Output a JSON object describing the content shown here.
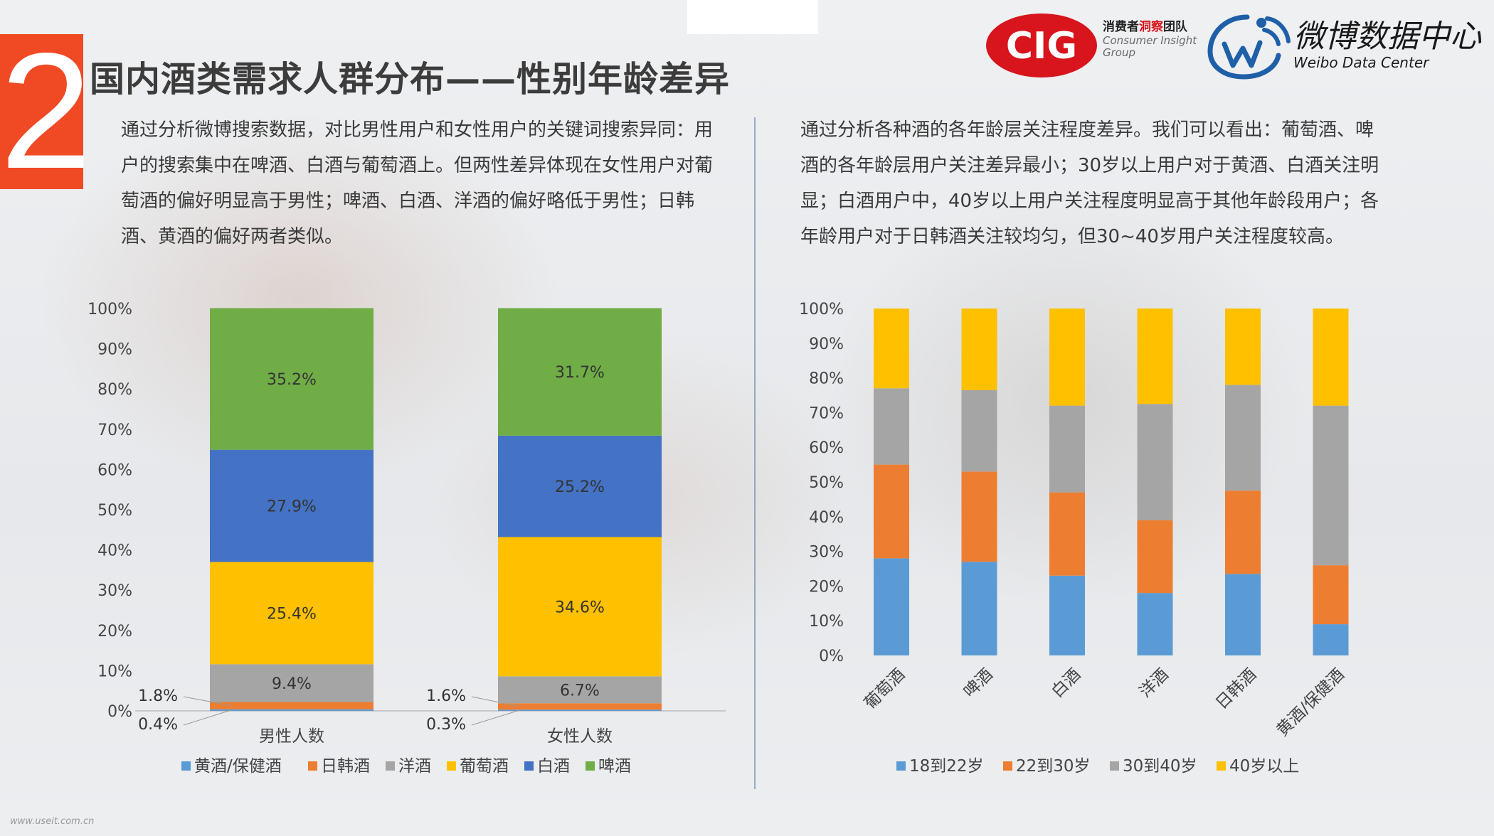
{
  "header": {
    "section_number": "2",
    "title": "国内酒类需求人群分布——性别年龄差异"
  },
  "logos": {
    "cig_mark": "CIG",
    "cig_cn_pre": "消费者",
    "cig_cn_red": "洞察",
    "cig_cn_post": "团队",
    "cig_en_line1": "Consumer Insight",
    "cig_en_line2": "Group",
    "weibo_cn": "微博数据中心",
    "weibo_en": "Weibo Data Center"
  },
  "left_text": "通过分析微博搜索数据，对比男性用户和女性用户的关键词搜索异同：用户的搜索集中在啤酒、白酒与葡萄酒上。但两性差异体现在女性用户对葡萄酒的偏好明显高于男性；啤酒、白酒、洋酒的偏好略低于男性；日韩酒、黄酒的偏好两者类似。",
  "right_text": "通过分析各种酒的各年龄层关注程度差异。我们可以看出：葡萄酒、啤酒的各年龄层用户关注差异最小；30岁以上用户对于黄酒、白酒关注明显；白酒用户中，40岁以上用户关注程度明显高于其他年龄段用户；各年龄用户对于日韩酒关注较均匀，但30~40岁用户关注程度较高。",
  "watermark": "www.useit.com.cn",
  "colors": {
    "blue_light": "#5b9bd5",
    "orange": "#ed7d31",
    "gray": "#a5a5a5",
    "yellow": "#ffc000",
    "blue_dark": "#4472c4",
    "green": "#70ad47",
    "accent_red": "#f04a25"
  },
  "chart_data": [
    {
      "type": "bar",
      "stacked": true,
      "categories": [
        "男性人数",
        "女性人数"
      ],
      "yticks": [
        "0%",
        "10%",
        "20%",
        "30%",
        "40%",
        "50%",
        "60%",
        "70%",
        "80%",
        "90%",
        "100%"
      ],
      "ylim": [
        0,
        100
      ],
      "series": [
        {
          "name": "黄酒/保健酒",
          "color": "#5b9bd5",
          "values": [
            0.4,
            0.3
          ],
          "labels": [
            "0.4%",
            "0.3%"
          ]
        },
        {
          "name": "日韩酒",
          "color": "#ed7d31",
          "values": [
            1.8,
            1.6
          ],
          "labels": [
            "1.8%",
            "1.6%"
          ]
        },
        {
          "name": "洋酒",
          "color": "#a5a5a5",
          "values": [
            9.4,
            6.7
          ],
          "labels": [
            "9.4%",
            "6.7%"
          ]
        },
        {
          "name": "葡萄酒",
          "color": "#ffc000",
          "values": [
            25.4,
            34.6
          ],
          "labels": [
            "25.4%",
            "34.6%"
          ]
        },
        {
          "name": "白酒",
          "color": "#4472c4",
          "values": [
            27.9,
            25.2
          ],
          "labels": [
            "27.9%",
            "25.2%"
          ]
        },
        {
          "name": "啤酒",
          "color": "#70ad47",
          "values": [
            35.2,
            31.7
          ],
          "labels": [
            "35.2%",
            "31.7%"
          ]
        }
      ],
      "legend": "bottom",
      "grid": false
    },
    {
      "type": "bar",
      "stacked": true,
      "categories": [
        "葡萄酒",
        "啤酒",
        "白酒",
        "洋酒",
        "日韩酒",
        "黄酒/保健酒"
      ],
      "yticks": [
        "0%",
        "10%",
        "20%",
        "30%",
        "40%",
        "50%",
        "60%",
        "70%",
        "80%",
        "90%",
        "100%"
      ],
      "ylim": [
        0,
        100
      ],
      "series": [
        {
          "name": "18到22岁",
          "color": "#5b9bd5",
          "values": [
            28,
            27,
            23,
            18,
            23.5,
            9
          ]
        },
        {
          "name": "22到30岁",
          "color": "#ed7d31",
          "values": [
            27,
            26,
            24,
            21,
            24,
            17
          ]
        },
        {
          "name": "30到40岁",
          "color": "#a5a5a5",
          "values": [
            22,
            23.5,
            25,
            33.5,
            30.5,
            46
          ]
        },
        {
          "name": "40岁以上",
          "color": "#ffc000",
          "values": [
            23,
            23.5,
            28,
            27.5,
            22,
            28
          ]
        }
      ],
      "legend": "bottom",
      "grid": false
    }
  ]
}
